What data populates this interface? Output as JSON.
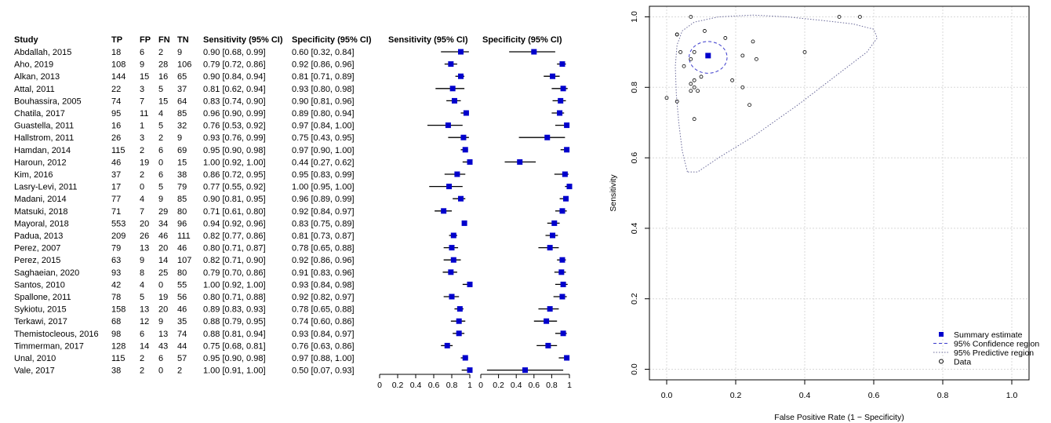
{
  "colors": {
    "marker": "#0000cc",
    "ci_line": "#000000",
    "axis": "#000000",
    "grid": "#d8d8d8",
    "region": "#3a3acc",
    "predictive": "#6a6a9a"
  },
  "chart_data": [
    {
      "type": "table",
      "columns": [
        "Study",
        "TP",
        "FP",
        "FN",
        "TN",
        "Sensitivity (95% CI)",
        "Specificity (95% CI)"
      ],
      "rows": [
        [
          "Abdallah, 2015",
          "18",
          "6",
          "2",
          "9",
          "0.90 [0.68, 0.99]",
          "0.60 [0.32, 0.84]"
        ],
        [
          "Aho, 2019",
          "108",
          "9",
          "28",
          "106",
          "0.79 [0.72, 0.86]",
          "0.92 [0.86, 0.96]"
        ],
        [
          "Alkan, 2013",
          "144",
          "15",
          "16",
          "65",
          "0.90 [0.84, 0.94]",
          "0.81 [0.71, 0.89]"
        ],
        [
          "Attal, 2011",
          "22",
          "3",
          "5",
          "37",
          "0.81 [0.62, 0.94]",
          "0.93 [0.80, 0.98]"
        ],
        [
          "Bouhassira, 2005",
          "74",
          "7",
          "15",
          "64",
          "0.83 [0.74, 0.90]",
          "0.90 [0.81, 0.96]"
        ],
        [
          "Chatila, 2017",
          "95",
          "11",
          "4",
          "85",
          "0.96 [0.90, 0.99]",
          "0.89 [0.80, 0.94]"
        ],
        [
          "Guastella, 2011",
          "16",
          "1",
          "5",
          "32",
          "0.76 [0.53, 0.92]",
          "0.97 [0.84, 1.00]"
        ],
        [
          "Hallstrom, 2011",
          "26",
          "3",
          "2",
          "9",
          "0.93 [0.76, 0.99]",
          "0.75 [0.43, 0.95]"
        ],
        [
          "Hamdan, 2014",
          "115",
          "2",
          "6",
          "69",
          "0.95 [0.90, 0.98]",
          "0.97 [0.90, 1.00]"
        ],
        [
          "Haroun, 2012",
          "46",
          "19",
          "0",
          "15",
          "1.00 [0.92, 1.00]",
          "0.44 [0.27, 0.62]"
        ],
        [
          "Kim, 2016",
          "37",
          "2",
          "6",
          "38",
          "0.86 [0.72, 0.95]",
          "0.95 [0.83, 0.99]"
        ],
        [
          "Lasry-Levi, 2011",
          "17",
          "0",
          "5",
          "79",
          "0.77 [0.55, 0.92]",
          "1.00 [0.95, 1.00]"
        ],
        [
          "Madani, 2014",
          "77",
          "4",
          "9",
          "85",
          "0.90 [0.81, 0.95]",
          "0.96 [0.89, 0.99]"
        ],
        [
          "Matsuki, 2018",
          "71",
          "7",
          "29",
          "80",
          "0.71 [0.61, 0.80]",
          "0.92 [0.84, 0.97]"
        ],
        [
          "Mayoral, 2018",
          "553",
          "20",
          "34",
          "96",
          "0.94 [0.92, 0.96]",
          "0.83 [0.75, 0.89]"
        ],
        [
          "Padua, 2013",
          "209",
          "26",
          "46",
          "111",
          "0.82 [0.77, 0.86]",
          "0.81 [0.73, 0.87]"
        ],
        [
          "Perez, 2007",
          "79",
          "13",
          "20",
          "46",
          "0.80 [0.71, 0.87]",
          "0.78 [0.65, 0.88]"
        ],
        [
          "Perez, 2015",
          "63",
          "9",
          "14",
          "107",
          "0.82 [0.71, 0.90]",
          "0.92 [0.86, 0.96]"
        ],
        [
          "Saghaeian, 2020",
          "93",
          "8",
          "25",
          "80",
          "0.79 [0.70, 0.86]",
          "0.91 [0.83, 0.96]"
        ],
        [
          "Santos, 2010",
          "42",
          "4",
          "0",
          "55",
          "1.00 [0.92, 1.00]",
          "0.93 [0.84, 0.98]"
        ],
        [
          "Spallone, 2011",
          "78",
          "5",
          "19",
          "56",
          "0.80 [0.71, 0.88]",
          "0.92 [0.82, 0.97]"
        ],
        [
          "Sykiotu, 2015",
          "158",
          "13",
          "20",
          "46",
          "0.89 [0.83, 0.93]",
          "0.78 [0.65, 0.88]"
        ],
        [
          "Terkawi, 2017",
          "68",
          "12",
          "9",
          "35",
          "0.88 [0.79, 0.95]",
          "0.74 [0.60, 0.86]"
        ],
        [
          "Themistocleous, 2016",
          "98",
          "6",
          "13",
          "74",
          "0.88 [0.81, 0.94]",
          "0.93 [0.84, 0.97]"
        ],
        [
          "Timmerman, 2017",
          "128",
          "14",
          "43",
          "44",
          "0.75 [0.68, 0.81]",
          "0.76 [0.63, 0.86]"
        ],
        [
          "Unal, 2010",
          "115",
          "2",
          "6",
          "57",
          "0.95 [0.90, 0.98]",
          "0.97 [0.88, 1.00]"
        ],
        [
          "Vale, 2017",
          "38",
          "2",
          "0",
          "2",
          "1.00 [0.91, 1.00]",
          "0.50 [0.07, 0.93]"
        ]
      ]
    },
    {
      "type": "scatter",
      "title": "Sensitivity (95% CI)",
      "xlim": [
        0,
        1
      ],
      "ticks": [
        "0",
        "0.2",
        "0.4",
        "0.6",
        "0.8",
        "1"
      ],
      "tick_values": [
        0,
        0.2,
        0.4,
        0.6,
        0.8,
        1
      ],
      "points": [
        [
          0.9,
          0.68,
          0.99
        ],
        [
          0.79,
          0.72,
          0.86
        ],
        [
          0.9,
          0.84,
          0.94
        ],
        [
          0.81,
          0.62,
          0.94
        ],
        [
          0.83,
          0.74,
          0.9
        ],
        [
          0.96,
          0.9,
          0.99
        ],
        [
          0.76,
          0.53,
          0.92
        ],
        [
          0.93,
          0.76,
          0.99
        ],
        [
          0.95,
          0.9,
          0.98
        ],
        [
          1.0,
          0.92,
          1.0
        ],
        [
          0.86,
          0.72,
          0.95
        ],
        [
          0.77,
          0.55,
          0.92
        ],
        [
          0.9,
          0.81,
          0.95
        ],
        [
          0.71,
          0.61,
          0.8
        ],
        [
          0.94,
          0.92,
          0.96
        ],
        [
          0.82,
          0.77,
          0.86
        ],
        [
          0.8,
          0.71,
          0.87
        ],
        [
          0.82,
          0.71,
          0.9
        ],
        [
          0.79,
          0.7,
          0.86
        ],
        [
          1.0,
          0.92,
          1.0
        ],
        [
          0.8,
          0.71,
          0.88
        ],
        [
          0.89,
          0.83,
          0.93
        ],
        [
          0.88,
          0.79,
          0.95
        ],
        [
          0.88,
          0.81,
          0.94
        ],
        [
          0.75,
          0.68,
          0.81
        ],
        [
          0.95,
          0.9,
          0.98
        ],
        [
          1.0,
          0.91,
          1.0
        ]
      ]
    },
    {
      "type": "scatter",
      "title": "Specificity (95% CI)",
      "xlim": [
        0,
        1
      ],
      "ticks": [
        "0",
        "0.2",
        "0.4",
        "0.6",
        "0.8",
        "1"
      ],
      "tick_values": [
        0,
        0.2,
        0.4,
        0.6,
        0.8,
        1
      ],
      "points": [
        [
          0.6,
          0.32,
          0.84
        ],
        [
          0.92,
          0.86,
          0.96
        ],
        [
          0.81,
          0.71,
          0.89
        ],
        [
          0.93,
          0.8,
          0.98
        ],
        [
          0.9,
          0.81,
          0.96
        ],
        [
          0.89,
          0.8,
          0.94
        ],
        [
          0.97,
          0.84,
          1.0
        ],
        [
          0.75,
          0.43,
          0.95
        ],
        [
          0.97,
          0.9,
          1.0
        ],
        [
          0.44,
          0.27,
          0.62
        ],
        [
          0.95,
          0.83,
          0.99
        ],
        [
          1.0,
          0.95,
          1.0
        ],
        [
          0.96,
          0.89,
          0.99
        ],
        [
          0.92,
          0.84,
          0.97
        ],
        [
          0.83,
          0.75,
          0.89
        ],
        [
          0.81,
          0.73,
          0.87
        ],
        [
          0.78,
          0.65,
          0.88
        ],
        [
          0.92,
          0.86,
          0.96
        ],
        [
          0.91,
          0.83,
          0.96
        ],
        [
          0.93,
          0.84,
          0.98
        ],
        [
          0.92,
          0.82,
          0.97
        ],
        [
          0.78,
          0.65,
          0.88
        ],
        [
          0.74,
          0.6,
          0.86
        ],
        [
          0.93,
          0.84,
          0.97
        ],
        [
          0.76,
          0.63,
          0.86
        ],
        [
          0.97,
          0.88,
          1.0
        ],
        [
          0.5,
          0.07,
          0.93
        ]
      ]
    },
    {
      "type": "scatter",
      "xlabel": "False Positive Rate (1 − Specificity)",
      "ylabel": "Sensitivity",
      "xlim": [
        -0.05,
        1.05
      ],
      "ylim": [
        -0.03,
        1.03
      ],
      "grid": true,
      "xticks": [
        "0.0",
        "0.2",
        "0.4",
        "0.6",
        "0.8",
        "1.0"
      ],
      "yticks": [
        "0.0",
        "0.2",
        "0.4",
        "0.6",
        "0.8",
        "1.0"
      ],
      "tick_values": [
        0,
        0.2,
        0.4,
        0.6,
        0.8,
        1.0
      ],
      "summary_estimate": {
        "fpr": 0.12,
        "sens": 0.89
      },
      "confidence_region": {
        "center": [
          0.12,
          0.885
        ],
        "rx": 0.055,
        "ry": 0.045
      },
      "predictive_region": [
        [
          0.06,
          0.56
        ],
        [
          0.045,
          0.62
        ],
        [
          0.035,
          0.7
        ],
        [
          0.028,
          0.78
        ],
        [
          0.025,
          0.86
        ],
        [
          0.03,
          0.92
        ],
        [
          0.045,
          0.96
        ],
        [
          0.08,
          0.985
        ],
        [
          0.15,
          1.0
        ],
        [
          0.25,
          1.005
        ],
        [
          0.35,
          1.0
        ],
        [
          0.45,
          0.99
        ],
        [
          0.54,
          0.98
        ],
        [
          0.6,
          0.965
        ],
        [
          0.61,
          0.94
        ],
        [
          0.58,
          0.9
        ],
        [
          0.5,
          0.84
        ],
        [
          0.38,
          0.75
        ],
        [
          0.25,
          0.66
        ],
        [
          0.15,
          0.6
        ],
        [
          0.09,
          0.56
        ]
      ],
      "data_points": [
        [
          0.4,
          0.9
        ],
        [
          0.07,
          0.79
        ],
        [
          0.08,
          0.9
        ],
        [
          0.07,
          0.81
        ],
        [
          0.1,
          0.83
        ],
        [
          0.11,
          0.96
        ],
        [
          0.03,
          0.76
        ],
        [
          0.25,
          0.93
        ],
        [
          0.03,
          0.95
        ],
        [
          0.56,
          1.0
        ],
        [
          0.05,
          0.86
        ],
        [
          0.0,
          0.77
        ],
        [
          0.04,
          0.9
        ],
        [
          0.08,
          0.71
        ],
        [
          0.17,
          0.94
        ],
        [
          0.19,
          0.82
        ],
        [
          0.22,
          0.8
        ],
        [
          0.08,
          0.82
        ],
        [
          0.09,
          0.79
        ],
        [
          0.07,
          1.0
        ],
        [
          0.08,
          0.8
        ],
        [
          0.22,
          0.89
        ],
        [
          0.26,
          0.88
        ],
        [
          0.07,
          0.88
        ],
        [
          0.24,
          0.75
        ],
        [
          0.03,
          0.95
        ],
        [
          0.5,
          1.0
        ]
      ],
      "legend": {
        "position": "bottom-right",
        "entries": [
          "Summary estimate",
          "95% Confidence region",
          "95% Predictive region",
          "Data"
        ]
      }
    }
  ]
}
